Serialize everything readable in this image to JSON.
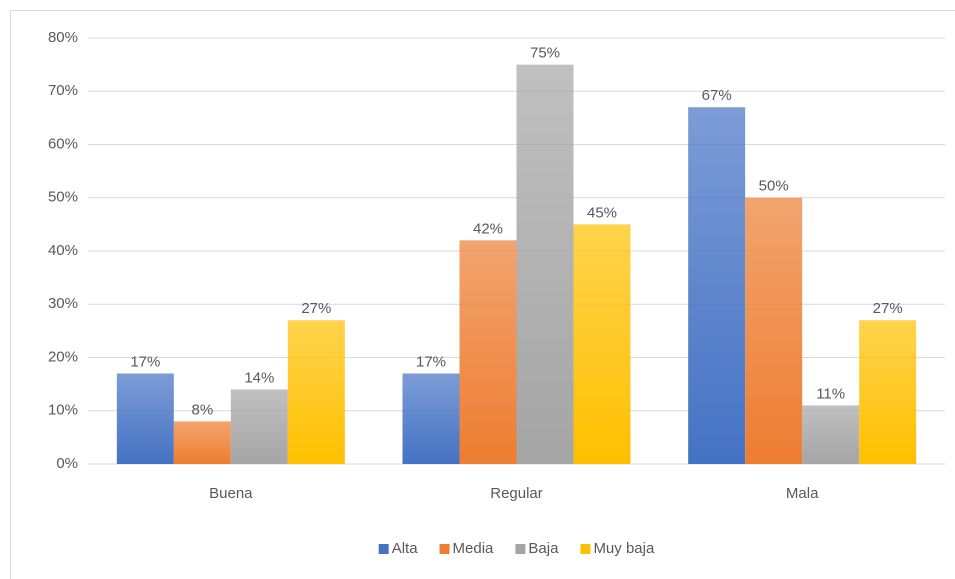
{
  "chart_data": {
    "type": "bar",
    "categories": [
      "Buena",
      "Regular",
      "Mala"
    ],
    "series": [
      {
        "name": "Alta",
        "color": "#4472c4",
        "values": [
          17,
          17,
          67
        ],
        "value_labels": [
          "17%",
          "17%",
          "67%"
        ]
      },
      {
        "name": "Media",
        "color": "#ed7d31",
        "values": [
          8,
          42,
          50
        ],
        "value_labels": [
          "8%",
          "42%",
          "50%"
        ]
      },
      {
        "name": "Baja",
        "color": "#a5a5a5",
        "values": [
          14,
          75,
          11
        ],
        "value_labels": [
          "14%",
          "75%",
          "11%"
        ]
      },
      {
        "name": "Muy baja",
        "color": "#ffc000",
        "values": [
          27,
          45,
          27
        ],
        "value_labels": [
          "27%",
          "45%",
          "27%"
        ]
      }
    ],
    "ylim": [
      0,
      80
    ],
    "yticks": [
      {
        "value": 0,
        "label": "0%"
      },
      {
        "value": 10,
        "label": "10%"
      },
      {
        "value": 20,
        "label": "20%"
      },
      {
        "value": 30,
        "label": "30%"
      },
      {
        "value": 40,
        "label": "40%"
      },
      {
        "value": 50,
        "label": "50%"
      },
      {
        "value": 60,
        "label": "60%"
      },
      {
        "value": 70,
        "label": "70%"
      },
      {
        "value": 80,
        "label": "80%"
      }
    ],
    "grid": true,
    "legend": "bottom"
  }
}
